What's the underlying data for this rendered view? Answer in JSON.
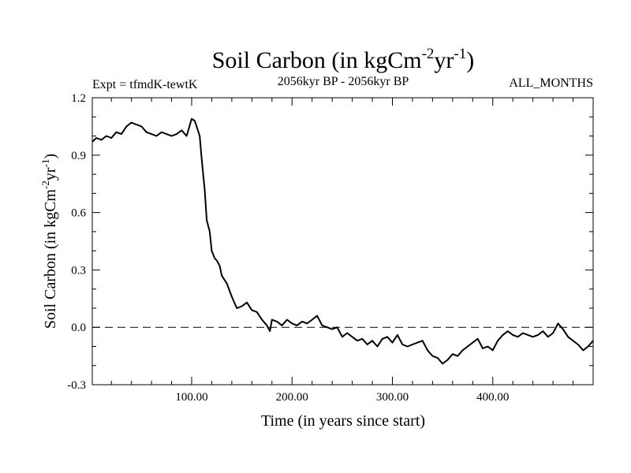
{
  "chart_data": {
    "type": "line",
    "title": {
      "base": "Soil Carbon (in kgCm",
      "sup1": "-2",
      "mid": "yr",
      "sup2": "-1",
      "end": ")"
    },
    "subtitle_left": "Expt = tfmdK-tewtK",
    "subtitle_center": "2056kyr BP - 2056kyr BP",
    "subtitle_right": "ALL_MONTHS",
    "xlabel": "Time (in years since start)",
    "ylabel": {
      "base": "Soil Carbon (in kgCm",
      "sup1": "-2",
      "mid": "yr",
      "sup2": "-1",
      "end": ")"
    },
    "xlim": [
      1,
      500
    ],
    "ylim": [
      -0.3,
      1.2
    ],
    "x_ticks": [
      100,
      200,
      300,
      400
    ],
    "x_tick_labels": [
      "100.00",
      "200.00",
      "300.00",
      "400.00"
    ],
    "y_ticks": [
      -0.3,
      0.0,
      0.3,
      0.6,
      0.9,
      1.2
    ],
    "y_tick_labels": [
      "-0.3",
      "0.0",
      "0.3",
      "0.6",
      "0.9",
      "1.2"
    ],
    "reference_line": 0.0,
    "series": [
      {
        "name": "Soil Carbon",
        "x": [
          1,
          5,
          10,
          15,
          20,
          25,
          30,
          35,
          40,
          45,
          50,
          55,
          60,
          65,
          70,
          75,
          80,
          85,
          90,
          95,
          100,
          103,
          105,
          108,
          110,
          113,
          115,
          118,
          120,
          123,
          125,
          128,
          130,
          135,
          140,
          145,
          150,
          155,
          160,
          165,
          170,
          175,
          178,
          180,
          185,
          190,
          195,
          200,
          205,
          210,
          215,
          220,
          225,
          230,
          235,
          240,
          245,
          250,
          255,
          260,
          265,
          270,
          275,
          280,
          285,
          290,
          295,
          300,
          305,
          310,
          315,
          320,
          325,
          330,
          335,
          340,
          345,
          350,
          355,
          360,
          365,
          370,
          375,
          380,
          385,
          390,
          395,
          400,
          405,
          410,
          415,
          420,
          425,
          430,
          435,
          440,
          445,
          450,
          455,
          460,
          465,
          470,
          475,
          480,
          485,
          490,
          495,
          500
        ],
        "values": [
          0.97,
          0.99,
          0.98,
          1.0,
          0.99,
          1.02,
          1.01,
          1.05,
          1.07,
          1.06,
          1.05,
          1.02,
          1.01,
          1.0,
          1.02,
          1.01,
          1.0,
          1.01,
          1.03,
          1.0,
          1.09,
          1.08,
          1.05,
          1.0,
          0.88,
          0.72,
          0.56,
          0.5,
          0.4,
          0.36,
          0.35,
          0.32,
          0.27,
          0.23,
          0.16,
          0.1,
          0.11,
          0.13,
          0.09,
          0.08,
          0.04,
          0.01,
          -0.02,
          0.04,
          0.03,
          0.01,
          0.04,
          0.02,
          0.01,
          0.03,
          0.02,
          0.04,
          0.06,
          0.01,
          0.0,
          -0.01,
          0.0,
          -0.05,
          -0.03,
          -0.05,
          -0.07,
          -0.06,
          -0.09,
          -0.07,
          -0.1,
          -0.06,
          -0.05,
          -0.08,
          -0.04,
          -0.09,
          -0.1,
          -0.09,
          -0.08,
          -0.07,
          -0.12,
          -0.15,
          -0.16,
          -0.19,
          -0.17,
          -0.14,
          -0.15,
          -0.12,
          -0.1,
          -0.08,
          -0.06,
          -0.11,
          -0.1,
          -0.12,
          -0.07,
          -0.04,
          -0.02,
          -0.04,
          -0.05,
          -0.03,
          -0.04,
          -0.05,
          -0.04,
          -0.02,
          -0.05,
          -0.03,
          0.02,
          -0.01,
          -0.05,
          -0.07,
          -0.09,
          -0.12,
          -0.1,
          -0.07
        ]
      }
    ]
  }
}
